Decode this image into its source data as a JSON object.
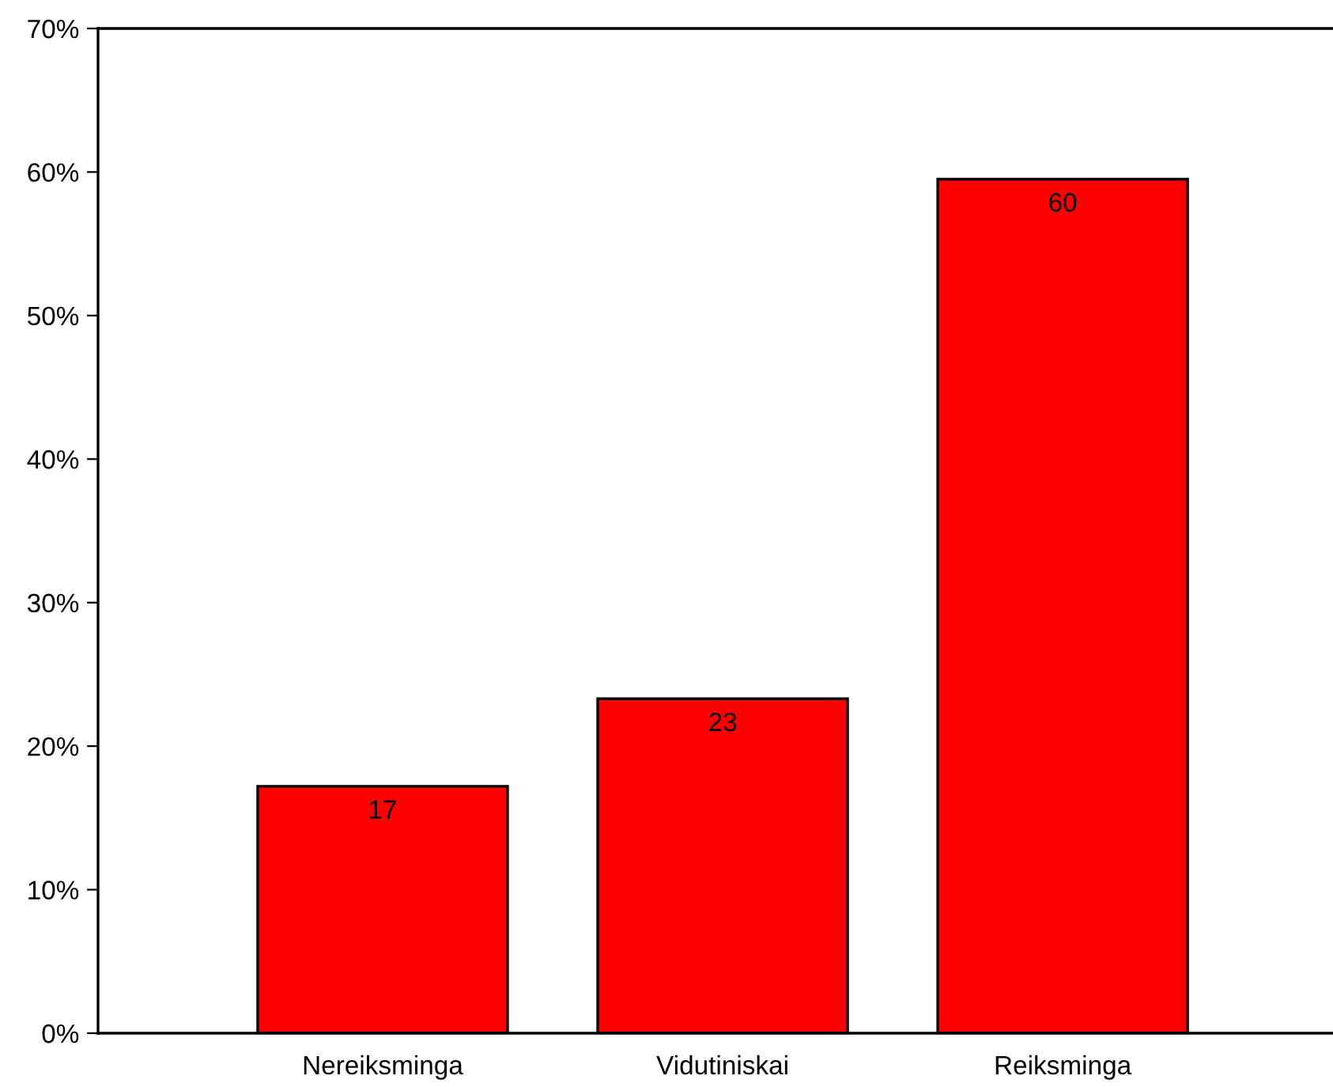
{
  "chart_data": {
    "type": "bar",
    "categories": [
      "Nereiksminga",
      "Vidutiniskai",
      "Reiksminga"
    ],
    "values": [
      17.2,
      23.3,
      59.5
    ],
    "value_labels": [
      "17",
      "23",
      "60"
    ],
    "color": "#ff0000",
    "ylim": [
      0,
      70
    ],
    "yticks": [
      {
        "value": 0,
        "label": "0%"
      },
      {
        "value": 10,
        "label": "10%"
      },
      {
        "value": 20,
        "label": "20%"
      },
      {
        "value": 30,
        "label": "30%"
      },
      {
        "value": 40,
        "label": "40%"
      },
      {
        "value": 50,
        "label": "50%"
      },
      {
        "value": 60,
        "label": "60%"
      },
      {
        "value": 70,
        "label": "70%"
      }
    ],
    "grid": false,
    "legend": false
  }
}
